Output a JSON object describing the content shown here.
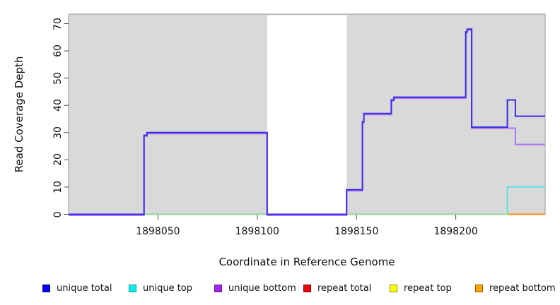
{
  "figure": {
    "x_axis_title": "Coordinate in Reference Genome",
    "y_axis_title": "Read Coverage Depth"
  },
  "legend": {
    "items": [
      {
        "label": "unique total",
        "fill": "#0000EE",
        "border": "#00008B"
      },
      {
        "label": "unique top",
        "fill": "#00EEEE",
        "border": "#1C8E8E"
      },
      {
        "label": "unique bottom",
        "fill": "#A522F0",
        "border": "#6D1F9E"
      },
      {
        "label": "repeat total",
        "fill": "#EE0000",
        "border": "#8B0000"
      },
      {
        "label": "repeat top",
        "fill": "#FFFF00",
        "border": "#8B8B00"
      },
      {
        "label": "repeat bottom",
        "fill": "#FFA500",
        "border": "#A05A00"
      }
    ]
  },
  "chart_data": {
    "type": "line",
    "subtype": "step-coverage",
    "xlabel": "Coordinate in Reference Genome",
    "ylabel": "Read Coverage Depth",
    "xlim": [
      1898005,
      1898245
    ],
    "ylim": [
      0,
      73.5
    ],
    "x_ticks": [
      {
        "value": 1898050,
        "label": "1898050"
      },
      {
        "value": 1898100,
        "label": "1898100"
      },
      {
        "value": 1898150,
        "label": "1898150"
      },
      {
        "value": 1898200,
        "label": "1898200"
      }
    ],
    "y_ticks": [
      {
        "value": 0,
        "label": "0"
      },
      {
        "value": 10,
        "label": "10"
      },
      {
        "value": 20,
        "label": "20"
      },
      {
        "value": 30,
        "label": "30"
      },
      {
        "value": 40,
        "label": "40"
      },
      {
        "value": 50,
        "label": "50"
      },
      {
        "value": 60,
        "label": "60"
      },
      {
        "value": 70,
        "label": "70"
      }
    ],
    "plot_background": "#d9d9d9",
    "plot_border": "#9a9a9a",
    "masked_region": {
      "from": 1898105,
      "to": 1898145,
      "color": "#ffffff"
    },
    "baseline_blend": {
      "color": "#8FD88F",
      "y": 0,
      "from": 1898005,
      "to": 1898226,
      "note": "green blended zero-depth overlap line"
    },
    "series": [
      {
        "name": "unique total",
        "color": "#3A2BE8",
        "points": [
          [
            1898005,
            0
          ],
          [
            1898043,
            0
          ],
          [
            1898043,
            29
          ],
          [
            1898044.5,
            29
          ],
          [
            1898044.5,
            30
          ],
          [
            1898105,
            30
          ],
          [
            1898105,
            0
          ],
          [
            1898145,
            0
          ],
          [
            1898145,
            9
          ],
          [
            1898153,
            9
          ],
          [
            1898153,
            34
          ],
          [
            1898153.7,
            34
          ],
          [
            1898153.7,
            37
          ],
          [
            1898167.5,
            37
          ],
          [
            1898167.5,
            42
          ],
          [
            1898168.8,
            42
          ],
          [
            1898168.8,
            43
          ],
          [
            1898205,
            43
          ],
          [
            1898205,
            67
          ],
          [
            1898205.7,
            67
          ],
          [
            1898205.7,
            68
          ],
          [
            1898208,
            68
          ],
          [
            1898208,
            32
          ],
          [
            1898226,
            32
          ],
          [
            1898226,
            42
          ],
          [
            1898230,
            42
          ],
          [
            1898230,
            36
          ],
          [
            1898245,
            36
          ]
        ]
      },
      {
        "name": "unique top",
        "color": "#55E2E2",
        "points": [
          [
            1898005,
            0
          ],
          [
            1898226,
            0
          ],
          [
            1898226,
            10
          ],
          [
            1898245,
            10
          ]
        ]
      },
      {
        "name": "unique bottom",
        "color": "#AF70F2",
        "points": [
          [
            1898005,
            0
          ],
          [
            1898043,
            0
          ],
          [
            1898043,
            29
          ],
          [
            1898044.5,
            29
          ],
          [
            1898044.5,
            30
          ],
          [
            1898105,
            30
          ],
          [
            1898105,
            0
          ],
          [
            1898145,
            0
          ],
          [
            1898145,
            9
          ],
          [
            1898153,
            9
          ],
          [
            1898153,
            34
          ],
          [
            1898153.7,
            34
          ],
          [
            1898153.7,
            37
          ],
          [
            1898167.5,
            37
          ],
          [
            1898167.5,
            42
          ],
          [
            1898168.8,
            42
          ],
          [
            1898168.8,
            43
          ],
          [
            1898205,
            43
          ],
          [
            1898205,
            67
          ],
          [
            1898205.7,
            67
          ],
          [
            1898205.7,
            68
          ],
          [
            1898208,
            68
          ],
          [
            1898208,
            32
          ],
          [
            1898230,
            32
          ],
          [
            1898230,
            26
          ],
          [
            1898245,
            26
          ]
        ]
      },
      {
        "name": "repeat total",
        "color": "#EE0000",
        "points": [
          [
            1898005,
            0
          ],
          [
            1898245,
            0
          ]
        ]
      },
      {
        "name": "repeat top",
        "color": "#F0F000",
        "points": [
          [
            1898005,
            0
          ],
          [
            1898245,
            0
          ]
        ]
      },
      {
        "name": "repeat bottom",
        "color": "#FF8C00",
        "points": [
          [
            1898005,
            0
          ],
          [
            1898245,
            0
          ]
        ]
      }
    ]
  }
}
